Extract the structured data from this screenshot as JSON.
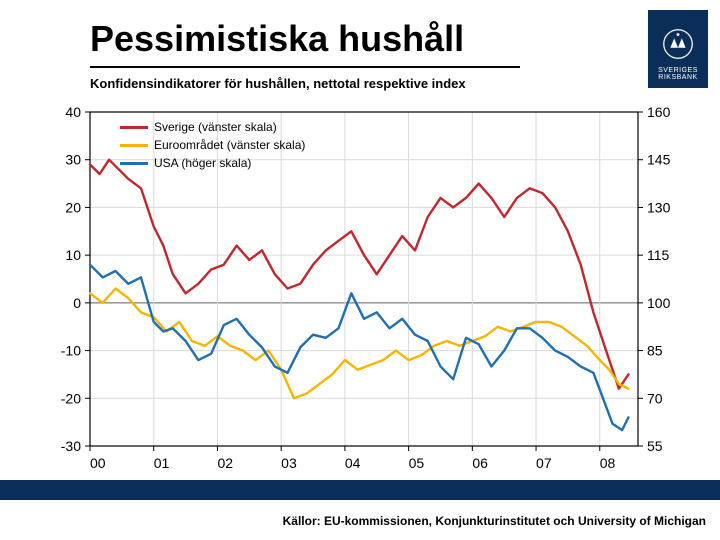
{
  "logo_text": "SVERIGES RIKSBANK",
  "title": "Pessimistiska hushåll",
  "subtitle": "Konfidensindikatorer för hushållen, nettotal respektive index",
  "sources": "Källor: EU-kommissionen, Konjunkturinstitutet och University of Michigan",
  "chart": {
    "type": "line",
    "background_color": "#ffffff",
    "grid_color": "#d9d9d9",
    "axis_color": "#000000",
    "tick_fontsize": 14,
    "left_axis": {
      "min": -30,
      "max": 40,
      "step": 10,
      "ticks": [
        -30,
        -20,
        -10,
        0,
        10,
        20,
        30,
        40
      ]
    },
    "right_axis": {
      "min": 55,
      "max": 160,
      "step": 15,
      "ticks": [
        55,
        70,
        85,
        100,
        115,
        130,
        145,
        160
      ]
    },
    "x_axis": {
      "labels": [
        "00",
        "01",
        "02",
        "03",
        "04",
        "05",
        "06",
        "07",
        "08"
      ],
      "min": 0,
      "max": 8.6
    },
    "legend": {
      "items": [
        {
          "label": "Sverige (vänster skala)",
          "color": "#c1272d"
        },
        {
          "label": "Euroområdet (vänster skala)",
          "color": "#f7b500"
        },
        {
          "label": "USA (höger skala)",
          "color": "#1f6fb2"
        }
      ]
    },
    "series": [
      {
        "name": "sverige",
        "axis": "left",
        "color": "#c1272d",
        "width": 2.4,
        "points": [
          [
            0,
            29
          ],
          [
            0.15,
            27
          ],
          [
            0.3,
            30
          ],
          [
            0.45,
            28
          ],
          [
            0.6,
            26
          ],
          [
            0.8,
            24
          ],
          [
            1.0,
            16
          ],
          [
            1.15,
            12
          ],
          [
            1.3,
            6
          ],
          [
            1.5,
            2
          ],
          [
            1.7,
            4
          ],
          [
            1.9,
            7
          ],
          [
            2.1,
            8
          ],
          [
            2.3,
            12
          ],
          [
            2.5,
            9
          ],
          [
            2.7,
            11
          ],
          [
            2.9,
            6
          ],
          [
            3.1,
            3
          ],
          [
            3.3,
            4
          ],
          [
            3.5,
            8
          ],
          [
            3.7,
            11
          ],
          [
            3.9,
            13
          ],
          [
            4.1,
            15
          ],
          [
            4.3,
            10
          ],
          [
            4.5,
            6
          ],
          [
            4.7,
            10
          ],
          [
            4.9,
            14
          ],
          [
            5.1,
            11
          ],
          [
            5.3,
            18
          ],
          [
            5.5,
            22
          ],
          [
            5.7,
            20
          ],
          [
            5.9,
            22
          ],
          [
            6.1,
            25
          ],
          [
            6.3,
            22
          ],
          [
            6.5,
            18
          ],
          [
            6.7,
            22
          ],
          [
            6.9,
            24
          ],
          [
            7.1,
            23
          ],
          [
            7.3,
            20
          ],
          [
            7.5,
            15
          ],
          [
            7.7,
            8
          ],
          [
            7.9,
            -2
          ],
          [
            8.1,
            -10
          ],
          [
            8.3,
            -18
          ],
          [
            8.45,
            -15
          ]
        ]
      },
      {
        "name": "euro",
        "axis": "left",
        "color": "#f7b500",
        "width": 2.4,
        "points": [
          [
            0,
            2
          ],
          [
            0.2,
            0
          ],
          [
            0.4,
            3
          ],
          [
            0.6,
            1
          ],
          [
            0.8,
            -2
          ],
          [
            1.0,
            -3
          ],
          [
            1.2,
            -6
          ],
          [
            1.4,
            -4
          ],
          [
            1.6,
            -8
          ],
          [
            1.8,
            -9
          ],
          [
            2.0,
            -7
          ],
          [
            2.2,
            -9
          ],
          [
            2.4,
            -10
          ],
          [
            2.6,
            -12
          ],
          [
            2.8,
            -10
          ],
          [
            3.0,
            -14
          ],
          [
            3.2,
            -20
          ],
          [
            3.4,
            -19
          ],
          [
            3.6,
            -17
          ],
          [
            3.8,
            -15
          ],
          [
            4.0,
            -12
          ],
          [
            4.2,
            -14
          ],
          [
            4.4,
            -13
          ],
          [
            4.6,
            -12
          ],
          [
            4.8,
            -10
          ],
          [
            5.0,
            -12
          ],
          [
            5.2,
            -11
          ],
          [
            5.4,
            -9
          ],
          [
            5.6,
            -8
          ],
          [
            5.8,
            -9
          ],
          [
            6.0,
            -8
          ],
          [
            6.2,
            -7
          ],
          [
            6.4,
            -5
          ],
          [
            6.6,
            -6
          ],
          [
            6.8,
            -5
          ],
          [
            7.0,
            -4
          ],
          [
            7.2,
            -4
          ],
          [
            7.4,
            -5
          ],
          [
            7.6,
            -7
          ],
          [
            7.8,
            -9
          ],
          [
            8.0,
            -12
          ],
          [
            8.15,
            -14
          ],
          [
            8.3,
            -17
          ],
          [
            8.45,
            -18
          ]
        ]
      },
      {
        "name": "usa",
        "axis": "right",
        "color": "#1f6fb2",
        "width": 2.4,
        "points": [
          [
            0,
            112
          ],
          [
            0.2,
            108
          ],
          [
            0.4,
            110
          ],
          [
            0.6,
            106
          ],
          [
            0.8,
            108
          ],
          [
            1.0,
            94
          ],
          [
            1.15,
            91
          ],
          [
            1.3,
            92
          ],
          [
            1.5,
            88
          ],
          [
            1.7,
            82
          ],
          [
            1.9,
            84
          ],
          [
            2.1,
            93
          ],
          [
            2.3,
            95
          ],
          [
            2.5,
            90
          ],
          [
            2.7,
            86
          ],
          [
            2.9,
            80
          ],
          [
            3.1,
            78
          ],
          [
            3.3,
            86
          ],
          [
            3.5,
            90
          ],
          [
            3.7,
            89
          ],
          [
            3.9,
            92
          ],
          [
            4.1,
            103
          ],
          [
            4.3,
            95
          ],
          [
            4.5,
            97
          ],
          [
            4.7,
            92
          ],
          [
            4.9,
            95
          ],
          [
            5.1,
            90
          ],
          [
            5.3,
            88
          ],
          [
            5.5,
            80
          ],
          [
            5.7,
            76
          ],
          [
            5.9,
            89
          ],
          [
            6.1,
            87
          ],
          [
            6.3,
            80
          ],
          [
            6.5,
            85
          ],
          [
            6.7,
            92
          ],
          [
            6.9,
            92
          ],
          [
            7.1,
            89
          ],
          [
            7.3,
            85
          ],
          [
            7.5,
            83
          ],
          [
            7.7,
            80
          ],
          [
            7.9,
            78
          ],
          [
            8.05,
            70
          ],
          [
            8.2,
            62
          ],
          [
            8.35,
            60
          ],
          [
            8.45,
            64
          ]
        ]
      }
    ]
  }
}
